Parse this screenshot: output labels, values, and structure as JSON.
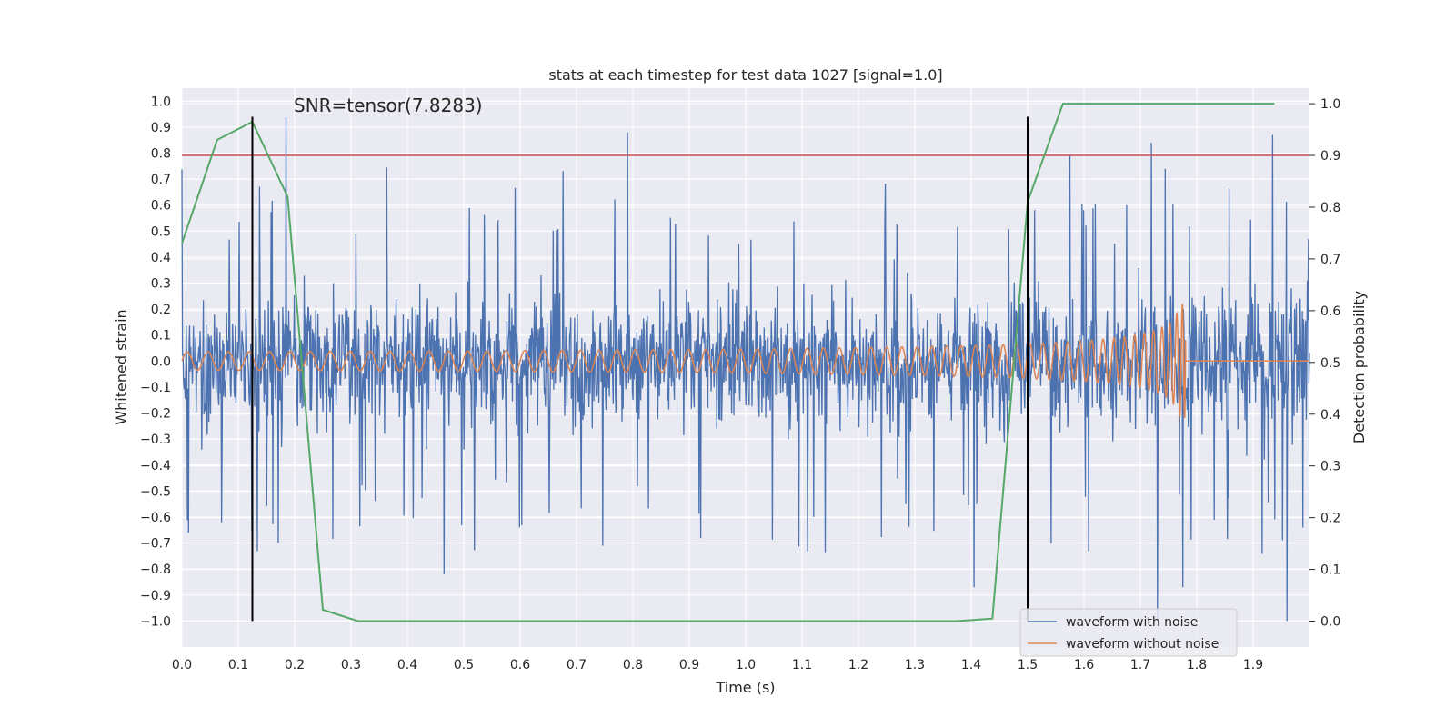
{
  "chart_data": {
    "type": "line",
    "title": "stats at each timestep for test data 1027 [signal=1.0]",
    "xlabel": "Time (s)",
    "ylabel": "Whitened strain",
    "y2label": "Detection probability",
    "xlim": [
      0.0,
      2.0
    ],
    "ylim": [
      -1.1,
      1.05
    ],
    "y2lim": [
      -0.05,
      1.03
    ],
    "xticks": [
      "0.0",
      "0.1",
      "0.2",
      "0.3",
      "0.4",
      "0.5",
      "0.6",
      "0.7",
      "0.8",
      "0.9",
      "1.0",
      "1.1",
      "1.2",
      "1.3",
      "1.4",
      "1.5",
      "1.6",
      "1.7",
      "1.8",
      "1.9"
    ],
    "yticks": [
      "1.0",
      "0.9",
      "0.8",
      "0.7",
      "0.6",
      "0.5",
      "0.4",
      "0.3",
      "0.2",
      "0.1",
      "0.0",
      "-0.1",
      "-0.2",
      "-0.3",
      "-0.4",
      "-0.5",
      "-0.6",
      "-0.7",
      "-0.8",
      "-0.9",
      "-1.0"
    ],
    "y2ticks": [
      "1.0",
      "0.9",
      "0.8",
      "0.7",
      "0.6",
      "0.5",
      "0.4",
      "0.3",
      "0.2",
      "0.1",
      "0.0"
    ],
    "grid": true,
    "legend_position": "bottom-right",
    "annotation": "SNR=tensor(7.8283)",
    "series": [
      {
        "name": "waveform with noise",
        "color": "#4c72b0",
        "axis": "left",
        "kind": "noise",
        "x_range": [
          0.0,
          2.0
        ],
        "approx_range": [
          -1.0,
          0.94
        ],
        "spikes": [
          [
            0.185,
            0.94
          ],
          [
            0.79,
            0.88
          ],
          [
            1.935,
            0.87
          ],
          [
            1.575,
            0.79
          ],
          [
            1.72,
            0.84
          ],
          [
            0.465,
            -0.82
          ],
          [
            1.73,
            -1.0
          ],
          [
            1.96,
            -1.0
          ],
          [
            1.405,
            -0.87
          ],
          [
            1.775,
            -0.87
          ],
          [
            0.07,
            -0.62
          ]
        ]
      },
      {
        "name": "waveform without noise",
        "color": "#dd8452",
        "axis": "left",
        "kind": "chirp",
        "x_range": [
          0.0,
          2.0
        ],
        "merger_time": 1.78,
        "start_amplitude": 0.035,
        "peak_amplitude": 0.22
      },
      {
        "color": "#55a868",
        "axis": "right",
        "x": [
          0.0,
          0.0625,
          0.125,
          0.1875,
          0.25,
          0.3125,
          0.375,
          1.375,
          1.4375,
          1.5,
          1.5625,
          1.625,
          1.6875,
          1.75,
          1.8125,
          1.875,
          1.9375
        ],
        "y": [
          0.73,
          0.93,
          0.965,
          0.82,
          0.022,
          0.0,
          0.0,
          0.0,
          0.005,
          0.81,
          1.0,
          1.0,
          1.0,
          1.0,
          1.0,
          1.0,
          1.0
        ]
      }
    ],
    "hlines": [
      {
        "y": 0.9,
        "axis": "right",
        "color": "#c44e52"
      }
    ],
    "vlines": [
      {
        "x": 0.125,
        "color": "#000000",
        "y_range": [
          -1.0,
          0.94
        ]
      },
      {
        "x": 1.5,
        "color": "#000000",
        "y_range": [
          -1.0,
          0.94
        ]
      }
    ]
  }
}
